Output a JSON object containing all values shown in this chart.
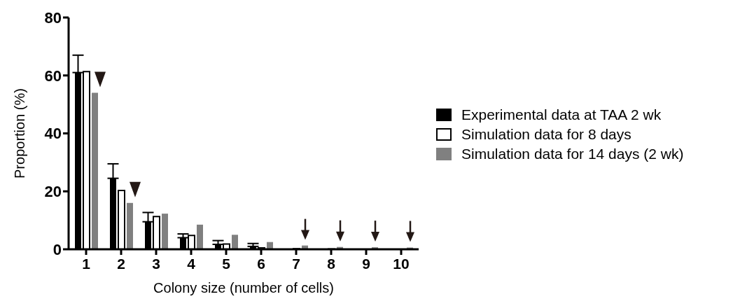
{
  "chart_data": {
    "type": "bar",
    "xlabel": "Colony size (number of cells)",
    "ylabel": "Proportion (%)",
    "categories": [
      "1",
      "2",
      "3",
      "4",
      "5",
      "6",
      "7",
      "8",
      "9",
      "10"
    ],
    "series": [
      {
        "name": "Experimental data at TAA 2 wk",
        "color": "#000000",
        "values": [
          61,
          24.5,
          9.5,
          4,
          1.7,
          1,
          0,
          0,
          0,
          0
        ],
        "errors": [
          [
            61,
            67
          ],
          [
            24.5,
            29.5
          ],
          [
            9.5,
            12.7
          ],
          [
            4,
            5.3
          ],
          [
            1.7,
            3
          ],
          [
            1,
            2
          ],
          null,
          null,
          null,
          null
        ]
      },
      {
        "name": "Simulation data for 8 days",
        "color": "#ffffff",
        "values": [
          61.3,
          20.3,
          11.3,
          4.8,
          1.8,
          0.5,
          0.2,
          0.1,
          0,
          0
        ]
      },
      {
        "name": "Simulation data for 14 days (2 wk)",
        "color": "#808080",
        "values": [
          54,
          16,
          12.3,
          8.5,
          5,
          2.5,
          1.3,
          0.8,
          0.7,
          0.6
        ]
      }
    ],
    "ylim": [
      0,
      80
    ],
    "yticks": [
      0,
      20,
      40,
      60,
      80
    ],
    "grid": false,
    "legend": "right"
  }
}
